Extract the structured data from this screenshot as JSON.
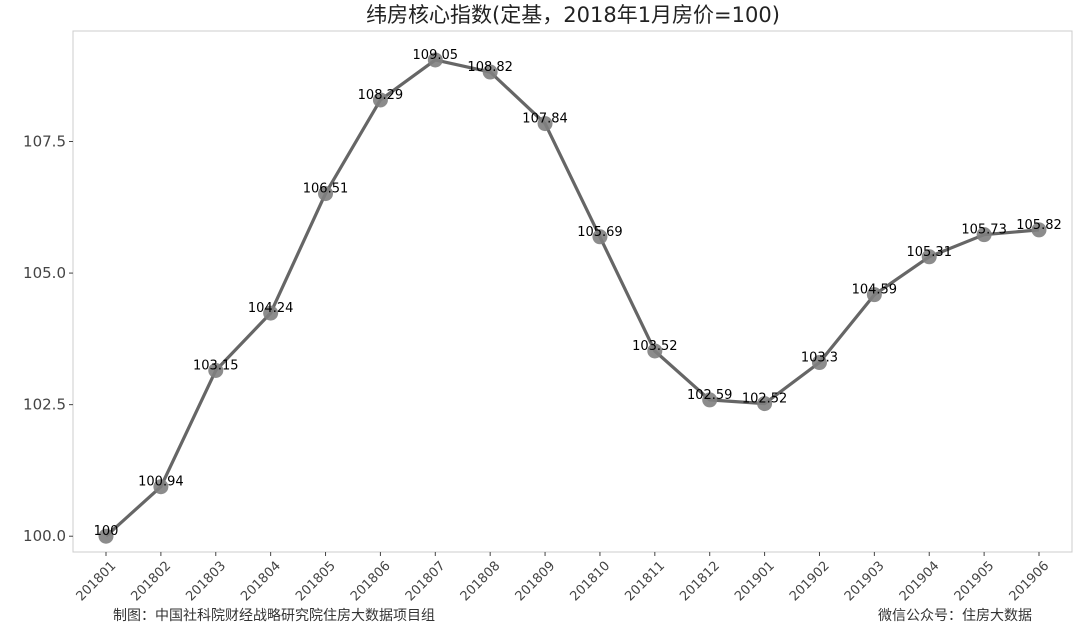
{
  "chart_data": {
    "type": "line",
    "title": "纬房核心指数(定基，2018年1月房价=100)",
    "xlabel": "",
    "ylabel": "",
    "categories": [
      "201801",
      "201802",
      "201803",
      "201804",
      "201805",
      "201806",
      "201807",
      "201808",
      "201809",
      "201810",
      "201811",
      "201812",
      "201901",
      "201902",
      "201903",
      "201904",
      "201905",
      "201906"
    ],
    "series": [
      {
        "values": [
          100,
          100.94,
          103.15,
          104.24,
          106.51,
          108.29,
          109.05,
          108.82,
          107.84,
          105.69,
          103.52,
          102.59,
          102.52,
          103.3,
          104.59,
          105.31,
          105.73,
          105.82
        ],
        "labels": [
          "100",
          "100.94",
          "103.15",
          "104.24",
          "106.51",
          "108.29",
          "109.05",
          "108.82",
          "107.84",
          "105.69",
          "103.52",
          "102.59",
          "102.52",
          "103.3",
          "104.59",
          "105.31",
          "105.73",
          "105.82"
        ]
      }
    ],
    "yticks": [
      100.0,
      102.5,
      105.0,
      107.5
    ],
    "ytick_labels": [
      "100.0",
      "102.5",
      "105.0",
      "107.5"
    ],
    "ylim": [
      99.7,
      109.6
    ],
    "grid": false,
    "legend": "none",
    "colors": {
      "line": "#666666",
      "marker": "#808080",
      "frame": "#cccccc",
      "tick": "#444444"
    }
  },
  "footer": {
    "left": "制图：中国社科院财经战略研究院住房大数据项目组",
    "right": "微信公众号：住房大数据"
  }
}
